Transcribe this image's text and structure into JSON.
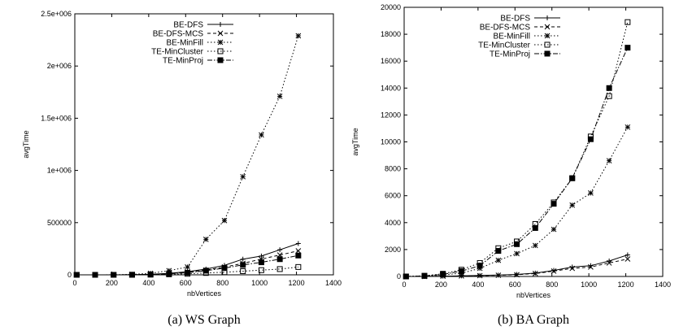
{
  "chart_data": [
    {
      "type": "line",
      "xlabel": "nbVertices",
      "ylabel": "avgTime",
      "caption": "(a) WS Graph",
      "xlim": [
        0,
        1400
      ],
      "ylim": [
        0,
        2500000
      ],
      "xticks": [
        "0",
        "200",
        "400",
        "600",
        "800",
        "1000",
        "1200",
        "1400"
      ],
      "yticks": [
        "0",
        "500000",
        "1e+006",
        "1.5e+006",
        "2e+006",
        "2.5e+006"
      ],
      "legend_position": "top-left",
      "x": [
        10,
        110,
        210,
        310,
        410,
        510,
        610,
        710,
        810,
        910,
        1010,
        1110,
        1210
      ],
      "series": [
        {
          "name": "BE-DFS",
          "marker": "plus",
          "dash": "solid",
          "values": [
            0,
            0,
            0,
            1000,
            5000,
            15000,
            30000,
            55000,
            90000,
            150000,
            180000,
            240000,
            300000
          ]
        },
        {
          "name": "BE-DFS-MCS",
          "marker": "cross",
          "dash": "dashed",
          "values": [
            0,
            0,
            0,
            1000,
            4000,
            12000,
            25000,
            45000,
            75000,
            110000,
            150000,
            190000,
            230000
          ]
        },
        {
          "name": "BE-MinFill",
          "marker": "star",
          "dash": "dotted",
          "values": [
            0,
            0,
            1000,
            5000,
            15000,
            40000,
            75000,
            340000,
            520000,
            940000,
            1340000,
            1710000,
            2290000
          ]
        },
        {
          "name": "TE-MinCluster",
          "marker": "open-square",
          "dash": "dotted",
          "values": [
            0,
            0,
            0,
            0,
            2000,
            5000,
            10000,
            18000,
            25000,
            35000,
            45000,
            55000,
            75000
          ]
        },
        {
          "name": "TE-MinProj",
          "marker": "filled-square",
          "dash": "dashdot",
          "values": [
            0,
            0,
            0,
            1000,
            3000,
            10000,
            20000,
            40000,
            65000,
            95000,
            120000,
            150000,
            185000
          ]
        }
      ]
    },
    {
      "type": "line",
      "xlabel": "nbVertices",
      "ylabel": "avgTime",
      "caption": "(b) BA Graph",
      "xlim": [
        0,
        1400
      ],
      "ylim": [
        0,
        20000
      ],
      "xticks": [
        "0",
        "200",
        "400",
        "600",
        "800",
        "1000",
        "1200",
        "1400"
      ],
      "yticks": [
        "0",
        "2000",
        "4000",
        "6000",
        "8000",
        "10000",
        "12000",
        "14000",
        "16000",
        "18000",
        "20000"
      ],
      "legend_position": "top-left",
      "x": [
        10,
        110,
        210,
        310,
        410,
        510,
        610,
        710,
        810,
        910,
        1010,
        1110,
        1210
      ],
      "series": [
        {
          "name": "BE-DFS",
          "marker": "plus",
          "dash": "solid",
          "values": [
            0,
            0,
            20,
            40,
            70,
            100,
            150,
            250,
            450,
            700,
            800,
            1150,
            1600
          ]
        },
        {
          "name": "BE-DFS-MCS",
          "marker": "cross",
          "dash": "dashed",
          "values": [
            0,
            0,
            20,
            40,
            60,
            90,
            130,
            220,
            400,
            600,
            700,
            1000,
            1300
          ]
        },
        {
          "name": "BE-MinFill",
          "marker": "star",
          "dash": "dotted",
          "values": [
            0,
            30,
            100,
            250,
            600,
            1200,
            1700,
            2300,
            3500,
            5300,
            6200,
            8600,
            11100
          ]
        },
        {
          "name": "TE-MinCluster",
          "marker": "open-square",
          "dash": "dotted",
          "values": [
            0,
            50,
            200,
            500,
            1000,
            2100,
            2600,
            3900,
            5500,
            7300,
            10400,
            13400,
            18900
          ]
        },
        {
          "name": "TE-MinProj",
          "marker": "filled-square",
          "dash": "dashdot",
          "values": [
            0,
            40,
            150,
            400,
            800,
            1900,
            2400,
            3600,
            5400,
            7300,
            10200,
            14000,
            17000
          ]
        }
      ]
    }
  ]
}
